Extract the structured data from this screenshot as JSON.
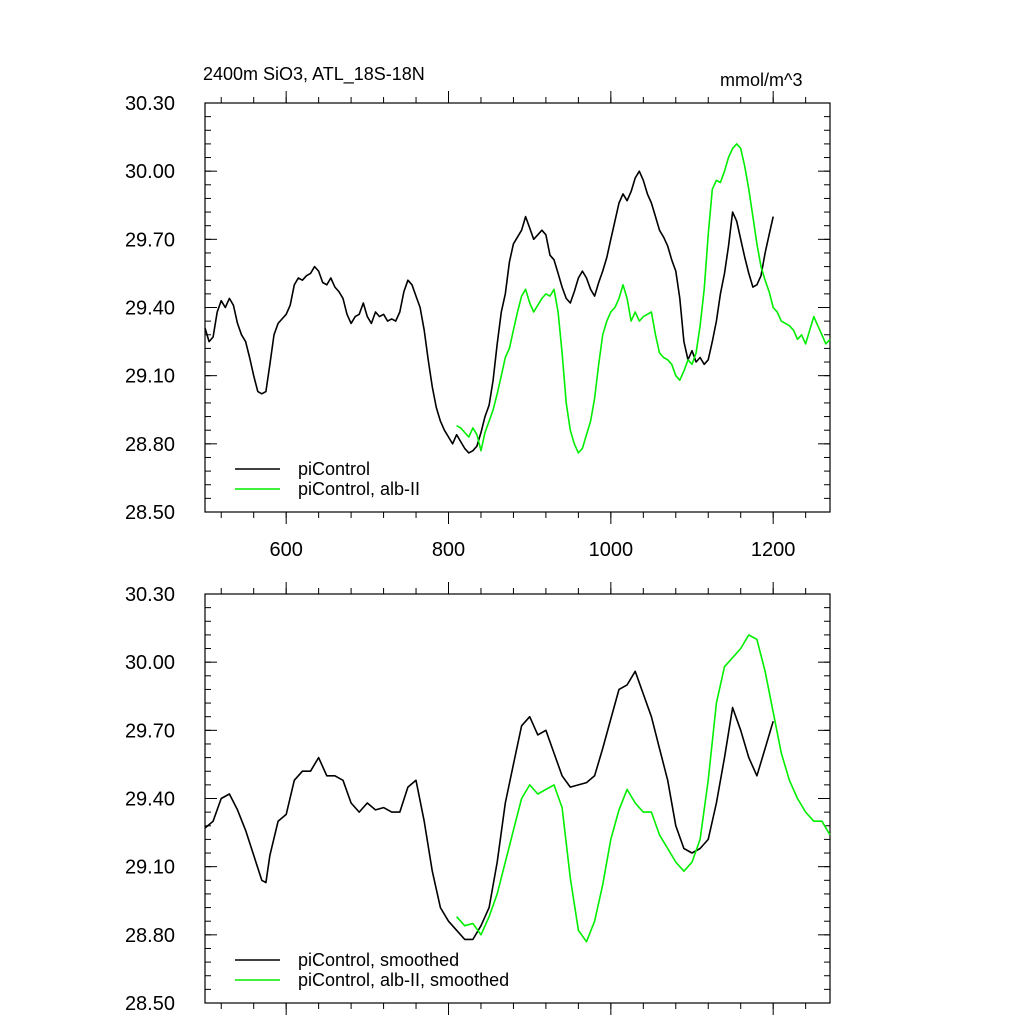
{
  "title_left": "2400m SiO3, ATL_18S-18N",
  "title_right": "mmol/m^3",
  "colors": {
    "control": "#000000",
    "alb": "#00ee00"
  },
  "chart_data": [
    {
      "type": "line",
      "name": "raw",
      "xlim": [
        500,
        1270
      ],
      "ylim": [
        28.5,
        30.3
      ],
      "yticks": [
        28.5,
        28.8,
        29.1,
        29.4,
        29.7,
        30.0,
        30.3
      ],
      "ytick_labels": [
        "28.50",
        "28.80",
        "29.10",
        "29.40",
        "29.70",
        "30.00",
        "30.30"
      ],
      "xticks": [
        600,
        800,
        1000,
        1200
      ],
      "xtick_labels": [
        "600",
        "800",
        "1000",
        "1200"
      ],
      "series": [
        {
          "name": "piControl",
          "color": "#000000",
          "x": [
            500,
            505,
            510,
            515,
            520,
            525,
            530,
            535,
            540,
            545,
            550,
            555,
            560,
            565,
            570,
            575,
            580,
            585,
            590,
            595,
            600,
            605,
            610,
            615,
            620,
            625,
            630,
            635,
            640,
            645,
            650,
            655,
            660,
            665,
            670,
            675,
            680,
            685,
            690,
            695,
            700,
            705,
            710,
            715,
            720,
            725,
            730,
            735,
            740,
            745,
            750,
            755,
            760,
            765,
            770,
            775,
            780,
            785,
            790,
            795,
            800,
            805,
            810,
            815,
            820,
            825,
            830,
            835,
            840,
            845,
            850,
            855,
            860,
            865,
            870,
            875,
            880,
            885,
            890,
            895,
            900,
            905,
            910,
            915,
            920,
            925,
            930,
            935,
            940,
            945,
            950,
            955,
            960,
            965,
            970,
            975,
            980,
            985,
            990,
            995,
            1000,
            1005,
            1010,
            1015,
            1020,
            1025,
            1030,
            1035,
            1040,
            1045,
            1050,
            1055,
            1060,
            1065,
            1070,
            1075,
            1080,
            1085,
            1090,
            1095,
            1100,
            1105,
            1110,
            1115,
            1120,
            1125,
            1130,
            1135,
            1140,
            1145,
            1150,
            1155,
            1160,
            1165,
            1170,
            1175,
            1180,
            1185,
            1190,
            1195,
            1200
          ],
          "values": [
            29.31,
            29.25,
            29.27,
            29.38,
            29.43,
            29.4,
            29.44,
            29.41,
            29.33,
            29.28,
            29.25,
            29.18,
            29.1,
            29.03,
            29.02,
            29.03,
            29.15,
            29.28,
            29.33,
            29.35,
            29.37,
            29.41,
            29.5,
            29.53,
            29.52,
            29.54,
            29.55,
            29.58,
            29.56,
            29.51,
            29.5,
            29.53,
            29.49,
            29.47,
            29.44,
            29.37,
            29.33,
            29.36,
            29.37,
            29.42,
            29.36,
            29.33,
            29.38,
            29.36,
            29.37,
            29.34,
            29.35,
            29.34,
            29.38,
            29.47,
            29.52,
            29.5,
            29.45,
            29.4,
            29.3,
            29.17,
            29.05,
            28.96,
            28.9,
            28.86,
            28.83,
            28.8,
            28.84,
            28.81,
            28.78,
            28.76,
            28.77,
            28.79,
            28.85,
            28.92,
            28.97,
            29.08,
            29.24,
            29.38,
            29.46,
            29.6,
            29.68,
            29.71,
            29.74,
            29.8,
            29.75,
            29.7,
            29.72,
            29.74,
            29.72,
            29.63,
            29.61,
            29.55,
            29.49,
            29.44,
            29.42,
            29.47,
            29.53,
            29.56,
            29.53,
            29.48,
            29.45,
            29.51,
            29.56,
            29.62,
            29.7,
            29.78,
            29.86,
            29.9,
            29.87,
            29.91,
            29.97,
            30.0,
            29.96,
            29.9,
            29.86,
            29.8,
            29.74,
            29.71,
            29.67,
            29.61,
            29.56,
            29.44,
            29.25,
            29.17,
            29.21,
            29.16,
            29.18,
            29.15,
            29.17,
            29.25,
            29.34,
            29.46,
            29.55,
            29.67,
            29.82,
            29.78,
            29.7,
            29.62,
            29.55,
            29.49,
            29.5,
            29.54,
            29.64,
            29.72,
            29.8
          ]
        },
        {
          "name": "piControl, alb-II",
          "color": "#00ee00",
          "x": [
            810,
            815,
            820,
            825,
            830,
            835,
            840,
            845,
            850,
            855,
            860,
            865,
            870,
            875,
            880,
            885,
            890,
            895,
            900,
            905,
            910,
            915,
            920,
            925,
            930,
            935,
            940,
            945,
            950,
            955,
            960,
            965,
            970,
            975,
            980,
            985,
            990,
            995,
            1000,
            1005,
            1010,
            1015,
            1020,
            1025,
            1030,
            1035,
            1040,
            1045,
            1050,
            1055,
            1060,
            1065,
            1070,
            1075,
            1080,
            1085,
            1090,
            1095,
            1100,
            1105,
            1110,
            1115,
            1120,
            1125,
            1130,
            1135,
            1140,
            1145,
            1150,
            1155,
            1160,
            1165,
            1170,
            1175,
            1180,
            1185,
            1190,
            1195,
            1200,
            1205,
            1210,
            1215,
            1220,
            1225,
            1230,
            1235,
            1240,
            1245,
            1250,
            1255,
            1260,
            1265,
            1270
          ],
          "values": [
            28.88,
            28.87,
            28.85,
            28.83,
            28.87,
            28.84,
            28.77,
            28.85,
            28.9,
            28.95,
            29.02,
            29.1,
            29.18,
            29.22,
            29.3,
            29.38,
            29.45,
            29.48,
            29.42,
            29.38,
            29.41,
            29.44,
            29.46,
            29.45,
            29.48,
            29.38,
            29.2,
            28.98,
            28.86,
            28.8,
            28.76,
            28.78,
            28.84,
            28.9,
            29.0,
            29.15,
            29.28,
            29.34,
            29.38,
            29.4,
            29.44,
            29.5,
            29.44,
            29.34,
            29.38,
            29.34,
            29.36,
            29.37,
            29.38,
            29.28,
            29.2,
            29.18,
            29.17,
            29.15,
            29.1,
            29.08,
            29.12,
            29.17,
            29.15,
            29.2,
            29.32,
            29.48,
            29.72,
            29.92,
            29.96,
            29.95,
            30.0,
            30.06,
            30.1,
            30.12,
            30.1,
            30.02,
            29.92,
            29.8,
            29.68,
            29.58,
            29.52,
            29.47,
            29.4,
            29.38,
            29.34,
            29.33,
            29.32,
            29.3,
            29.26,
            29.28,
            29.24,
            29.3,
            29.36,
            29.32,
            29.28,
            29.24,
            29.26
          ]
        }
      ],
      "legend": [
        "piControl",
        "piControl, alb-II"
      ],
      "legend_location": "lower-left"
    },
    {
      "type": "line",
      "name": "smoothed",
      "xlim": [
        500,
        1270
      ],
      "ylim": [
        28.5,
        30.3
      ],
      "yticks": [
        28.5,
        28.8,
        29.1,
        29.4,
        29.7,
        30.0,
        30.3
      ],
      "ytick_labels": [
        "28.50",
        "28.80",
        "29.10",
        "29.40",
        "29.70",
        "30.00",
        "30.30"
      ],
      "xticks": [
        600,
        800,
        1000,
        1200
      ],
      "xtick_labels": [
        "",
        "",
        "",
        ""
      ],
      "series": [
        {
          "name": "piControl, smoothed",
          "color": "#000000",
          "x": [
            500,
            510,
            520,
            530,
            540,
            550,
            560,
            570,
            575,
            580,
            590,
            600,
            610,
            620,
            630,
            640,
            650,
            660,
            670,
            680,
            690,
            700,
            710,
            720,
            730,
            740,
            750,
            760,
            770,
            780,
            790,
            800,
            810,
            820,
            830,
            840,
            850,
            860,
            870,
            880,
            890,
            900,
            910,
            920,
            930,
            940,
            950,
            960,
            970,
            980,
            990,
            1000,
            1010,
            1020,
            1030,
            1040,
            1050,
            1060,
            1070,
            1080,
            1090,
            1100,
            1110,
            1120,
            1130,
            1140,
            1150,
            1160,
            1170,
            1180,
            1190,
            1200
          ],
          "values": [
            29.27,
            29.3,
            29.4,
            29.42,
            29.35,
            29.26,
            29.15,
            29.04,
            29.03,
            29.15,
            29.3,
            29.33,
            29.48,
            29.52,
            29.52,
            29.58,
            29.5,
            29.5,
            29.48,
            29.38,
            29.34,
            29.38,
            29.35,
            29.36,
            29.34,
            29.34,
            29.45,
            29.48,
            29.3,
            29.08,
            28.92,
            28.86,
            28.82,
            28.78,
            28.78,
            28.84,
            28.92,
            29.12,
            29.38,
            29.55,
            29.72,
            29.76,
            29.68,
            29.7,
            29.6,
            29.5,
            29.45,
            29.46,
            29.47,
            29.5,
            29.62,
            29.75,
            29.88,
            29.9,
            29.96,
            29.86,
            29.76,
            29.62,
            29.48,
            29.28,
            29.18,
            29.16,
            29.18,
            29.22,
            29.38,
            29.58,
            29.8,
            29.7,
            29.58,
            29.5,
            29.62,
            29.74
          ]
        },
        {
          "name": "piControl, alb-II, smoothed",
          "color": "#00ee00",
          "x": [
            810,
            820,
            830,
            840,
            850,
            860,
            870,
            880,
            890,
            900,
            910,
            920,
            930,
            940,
            950,
            960,
            970,
            980,
            990,
            1000,
            1010,
            1020,
            1030,
            1040,
            1050,
            1060,
            1070,
            1080,
            1090,
            1100,
            1110,
            1120,
            1130,
            1140,
            1150,
            1160,
            1170,
            1180,
            1190,
            1200,
            1210,
            1220,
            1230,
            1240,
            1250,
            1260,
            1270
          ],
          "values": [
            28.88,
            28.84,
            28.85,
            28.8,
            28.88,
            28.98,
            29.12,
            29.26,
            29.4,
            29.46,
            29.42,
            29.44,
            29.46,
            29.36,
            29.05,
            28.82,
            28.77,
            28.86,
            29.02,
            29.22,
            29.35,
            29.44,
            29.38,
            29.34,
            29.34,
            29.24,
            29.18,
            29.12,
            29.08,
            29.12,
            29.22,
            29.48,
            29.82,
            29.98,
            30.02,
            30.06,
            30.12,
            30.1,
            29.96,
            29.78,
            29.6,
            29.48,
            29.4,
            29.34,
            29.3,
            29.3,
            29.24
          ]
        }
      ],
      "legend": [
        "piControl, smoothed",
        "piControl, alb-II, smoothed"
      ],
      "legend_location": "lower-left"
    }
  ]
}
